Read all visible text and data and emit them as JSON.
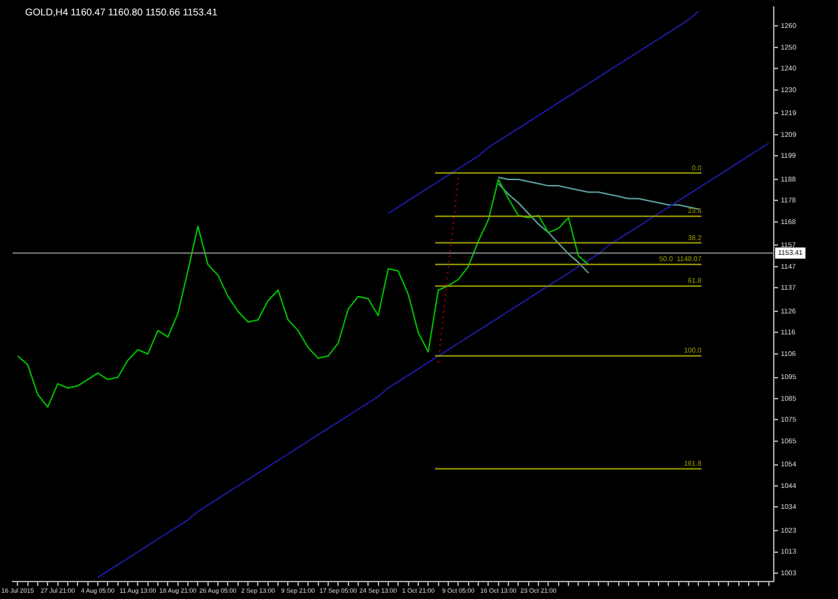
{
  "chart_data": {
    "type": "line",
    "title": "GOLD,H4  1160.47 1160.80 1150.66 1153.41",
    "categories": [
      "16 Jul 2015",
      null,
      null,
      null,
      "27 Jul 21:00",
      null,
      null,
      null,
      "4 Aug 05:00",
      null,
      null,
      null,
      "11 Aug 13:00",
      null,
      null,
      null,
      "18 Aug 21:00",
      null,
      null,
      null,
      "26 Aug 05:00",
      null,
      null,
      null,
      "2 Sep 13:00",
      null,
      null,
      null,
      "9 Sep 21:00",
      null,
      null,
      null,
      "17 Sep 05:00",
      null,
      null,
      null,
      "24 Sep 13:00",
      null,
      null,
      null,
      "1 Oct 21:00",
      null,
      null,
      null,
      "9 Oct 05:00",
      null,
      null,
      null,
      "16 Oct 13:00",
      null,
      null,
      null,
      "23 Oct 21:00",
      null,
      null,
      null,
      null,
      null,
      null,
      null,
      null,
      null,
      null,
      null,
      null,
      null,
      null,
      null,
      null,
      null,
      null,
      null,
      null,
      null,
      null,
      null
    ],
    "ylim": [
      999,
      1269
    ],
    "yticks": [
      1003,
      1013,
      1023,
      1034,
      1044,
      1054,
      1065,
      1075,
      1085,
      1095,
      1106,
      1116,
      1126,
      1137,
      1147,
      1157,
      1168,
      1178,
      1188,
      1199,
      1209,
      1219,
      1230,
      1240,
      1250,
      1260
    ],
    "grid": false,
    "legend": false,
    "marker": "none",
    "series": [
      {
        "color": "#00c000",
        "values": [
          1105,
          1101,
          1087,
          1081,
          1092,
          1090,
          1091,
          1094,
          1097,
          1094,
          1095,
          1103,
          1108,
          1106,
          1117,
          1114,
          1125,
          1145,
          1166,
          1148,
          1143,
          1133,
          1126,
          1121,
          1122,
          1131,
          1136,
          1122,
          1117,
          1109,
          1104,
          1105,
          1111,
          1127,
          1133,
          1132,
          1124,
          1146,
          1145,
          1134,
          1116,
          1107,
          1136,
          1138,
          1141,
          1147,
          1159,
          1169,
          1188,
          1179,
          1171,
          1170,
          1171,
          1163,
          1165,
          1170,
          1152,
          1148,
          null,
          null,
          null,
          null,
          null,
          null,
          null,
          null,
          null,
          null,
          null,
          null,
          null,
          null,
          null,
          null,
          null,
          null
        ]
      },
      {
        "type": "line",
        "color": "#1a1a9c",
        "values": [
          null,
          null,
          null,
          null,
          null,
          null,
          null,
          null,
          1001,
          1004,
          1007,
          1010,
          1013,
          1016,
          1019,
          1022,
          1025,
          1028,
          1032,
          1035,
          1038,
          1041,
          1044,
          1047,
          1050,
          1053,
          1056,
          1059,
          1062,
          1065,
          1068,
          1071,
          1074,
          1077,
          1080,
          1083,
          1086,
          1090,
          1093,
          1096,
          1099,
          1102,
          1105,
          1108,
          1111,
          1114,
          1117,
          1120,
          1123,
          1126,
          1129,
          1132,
          1135,
          1138,
          1141,
          1144,
          1147,
          1150,
          1153,
          1157,
          1160,
          1163,
          1166,
          1169,
          1172,
          1175,
          1178,
          1181,
          1184,
          1187,
          1190,
          1193,
          1196,
          1199,
          1202,
          1205
        ]
      },
      {
        "type": "line",
        "color": "#1a1a9c",
        "values": [
          null,
          null,
          null,
          null,
          null,
          null,
          null,
          null,
          null,
          null,
          null,
          null,
          null,
          null,
          null,
          null,
          null,
          null,
          null,
          null,
          null,
          null,
          null,
          null,
          null,
          null,
          null,
          null,
          null,
          null,
          null,
          null,
          null,
          null,
          null,
          null,
          null,
          1172,
          1175,
          1178,
          1181,
          1184,
          1187,
          1190,
          1193,
          1196,
          1199,
          1203,
          1206,
          1209,
          1212,
          1215,
          1218,
          1221,
          1224,
          1227,
          1230,
          1233,
          1236,
          1239,
          1242,
          1245,
          1248,
          1251,
          1254,
          1257,
          1260,
          1263,
          1267,
          null,
          null,
          null,
          null,
          null,
          null,
          null
        ]
      },
      {
        "type": "line",
        "color": "#5fa0a0",
        "values": [
          null,
          null,
          null,
          null,
          null,
          null,
          null,
          null,
          null,
          null,
          null,
          null,
          null,
          null,
          null,
          null,
          null,
          null,
          null,
          null,
          null,
          null,
          null,
          null,
          null,
          null,
          null,
          null,
          null,
          null,
          null,
          null,
          null,
          null,
          null,
          null,
          null,
          null,
          null,
          null,
          null,
          null,
          null,
          null,
          null,
          null,
          null,
          null,
          1189,
          1188,
          1188,
          1187,
          1186,
          1185,
          1185,
          1184,
          1183,
          1182,
          1182,
          1181,
          1180,
          1179,
          1179,
          1178,
          1177,
          1176,
          1176,
          1175,
          1174,
          null,
          null,
          null,
          null,
          null,
          null,
          null
        ]
      },
      {
        "type": "line",
        "color": "#5fa0a0",
        "values": [
          null,
          null,
          null,
          null,
          null,
          null,
          null,
          null,
          null,
          null,
          null,
          null,
          null,
          null,
          null,
          null,
          null,
          null,
          null,
          null,
          null,
          null,
          null,
          null,
          null,
          null,
          null,
          null,
          null,
          null,
          null,
          null,
          null,
          null,
          null,
          null,
          null,
          null,
          null,
          null,
          null,
          null,
          null,
          null,
          null,
          null,
          null,
          null,
          1186,
          1181,
          1177,
          1172,
          1167,
          1163,
          1158,
          1153,
          1149,
          1144,
          null,
          null,
          null,
          null,
          null,
          null,
          null,
          null,
          null,
          null,
          null,
          null,
          null,
          null,
          null,
          null,
          null,
          null
        ]
      },
      {
        "type": "line",
        "color": "#c00000",
        "line_style": "dotted",
        "values": [
          null,
          null,
          null,
          null,
          null,
          null,
          null,
          null,
          null,
          null,
          null,
          null,
          null,
          null,
          null,
          null,
          null,
          null,
          null,
          null,
          null,
          null,
          null,
          null,
          null,
          null,
          null,
          null,
          null,
          null,
          null,
          null,
          null,
          null,
          null,
          null,
          null,
          null,
          null,
          null,
          null,
          null,
          1102,
          1146,
          1189,
          null,
          null,
          null,
          null,
          null,
          null,
          null,
          null,
          null,
          null,
          null,
          null,
          null,
          null,
          null,
          null,
          null,
          null,
          null,
          null,
          null,
          null,
          null,
          null,
          null,
          null,
          null,
          null,
          null,
          null,
          null
        ]
      }
    ],
    "ref_lines": [
      {
        "axis": "y",
        "value": 1191.0,
        "color": "#a0a000"
      },
      {
        "axis": "y",
        "value": 1170.7,
        "color": "#a0a000"
      },
      {
        "axis": "y",
        "value": 1158.2,
        "color": "#a0a000"
      },
      {
        "axis": "y",
        "value": 1148.07,
        "color": "#a0a000"
      },
      {
        "axis": "y",
        "value": 1137.9,
        "color": "#a0a000"
      },
      {
        "axis": "y",
        "value": 1105.1,
        "color": "#a0a000"
      },
      {
        "axis": "y",
        "value": 1052.0,
        "color": "#a0a000"
      },
      {
        "axis": "y",
        "value": 1153.41,
        "label": "1153.41",
        "color": "#808080"
      }
    ],
    "annotations": [
      {
        "text": "0.0",
        "y": 1191.0
      },
      {
        "text": "23.6",
        "y": 1170.7
      },
      {
        "text": "38.2",
        "y": 1158.2
      },
      {
        "text": "50.0  1148.07",
        "y": 1148.07
      },
      {
        "text": "61.8",
        "y": 1137.9
      },
      {
        "text": "100.0",
        "y": 1105.1
      },
      {
        "text": "161.8",
        "y": 1052.0
      }
    ]
  }
}
